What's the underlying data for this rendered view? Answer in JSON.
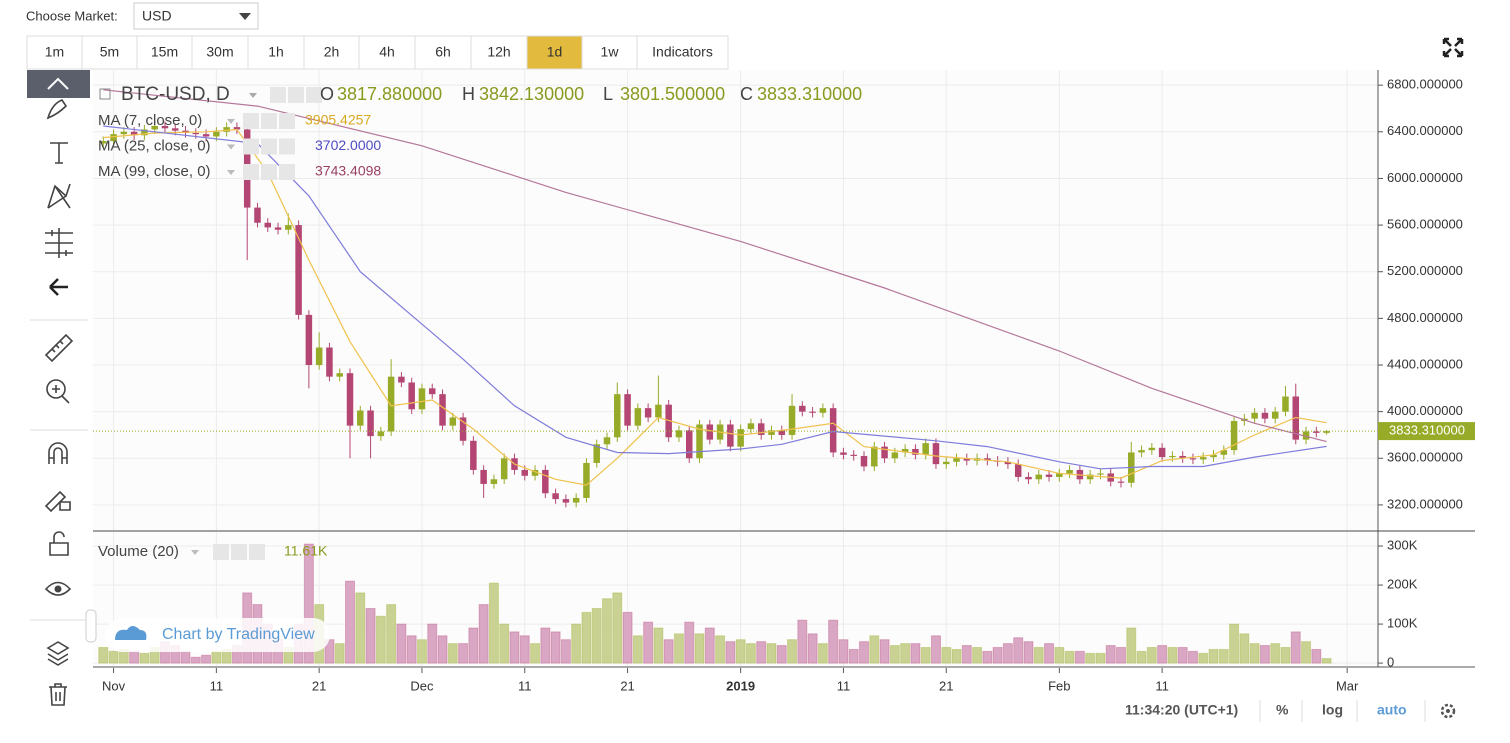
{
  "header": {
    "market_label": "Choose Market:",
    "market": "USD"
  },
  "intervals": [
    "1m",
    "5m",
    "15m",
    "30m",
    "1h",
    "2h",
    "4h",
    "6h",
    "12h",
    "1d",
    "1w",
    "Indicators"
  ],
  "active_interval": "1d",
  "footer": {
    "time": "11:34:20 (UTC+1)",
    "percent": "%",
    "log": "log",
    "auto": "auto"
  },
  "watermark": "Chart by TradingView",
  "chart_data": {
    "type": "candlestick",
    "symbol": "BTC-USD, D",
    "ohlc_legend": [
      {
        "key": "O",
        "label": "3817.880000"
      },
      {
        "key": "H",
        "label": "3842.130000"
      },
      {
        "key": "L",
        "label": "3801.500000"
      },
      {
        "key": "C",
        "label": "3833.310000"
      }
    ],
    "last_price_label": "3833.310000",
    "up_color": "#98ab28",
    "down_color": "#b44673",
    "volume_up_color": "#c9d292",
    "volume_down_color": "#d9a6c4",
    "x": [
      "2018-10-31",
      "2018-11-01",
      "2018-11-02",
      "2018-11-03",
      "2018-11-04",
      "2018-11-05",
      "2018-11-06",
      "2018-11-07",
      "2018-11-08",
      "2018-11-09",
      "2018-11-10",
      "2018-11-11",
      "2018-11-12",
      "2018-11-13",
      "2018-11-14",
      "2018-11-15",
      "2018-11-16",
      "2018-11-17",
      "2018-11-18",
      "2018-11-19",
      "2018-11-20",
      "2018-11-21",
      "2018-11-22",
      "2018-11-23",
      "2018-11-24",
      "2018-11-25",
      "2018-11-26",
      "2018-11-27",
      "2018-11-28",
      "2018-11-29",
      "2018-11-30",
      "2018-12-01",
      "2018-12-02",
      "2018-12-03",
      "2018-12-04",
      "2018-12-05",
      "2018-12-06",
      "2018-12-07",
      "2018-12-08",
      "2018-12-09",
      "2018-12-10",
      "2018-12-11",
      "2018-12-12",
      "2018-12-13",
      "2018-12-14",
      "2018-12-15",
      "2018-12-16",
      "2018-12-17",
      "2018-12-18",
      "2018-12-19",
      "2018-12-20",
      "2018-12-21",
      "2018-12-22",
      "2018-12-23",
      "2018-12-24",
      "2018-12-25",
      "2018-12-26",
      "2018-12-27",
      "2018-12-28",
      "2018-12-29",
      "2018-12-30",
      "2018-12-31",
      "2019-01-01",
      "2019-01-02",
      "2019-01-03",
      "2019-01-04",
      "2019-01-05",
      "2019-01-06",
      "2019-01-07",
      "2019-01-08",
      "2019-01-09",
      "2019-01-10",
      "2019-01-11",
      "2019-01-12",
      "2019-01-13",
      "2019-01-14",
      "2019-01-15",
      "2019-01-16",
      "2019-01-17",
      "2019-01-18",
      "2019-01-19",
      "2019-01-20",
      "2019-01-21",
      "2019-01-22",
      "2019-01-23",
      "2019-01-24",
      "2019-01-25",
      "2019-01-26",
      "2019-01-27",
      "2019-01-28",
      "2019-01-29",
      "2019-01-30",
      "2019-01-31",
      "2019-02-01",
      "2019-02-02",
      "2019-02-03",
      "2019-02-04",
      "2019-02-05",
      "2019-02-06",
      "2019-02-07",
      "2019-02-08",
      "2019-02-09",
      "2019-02-10",
      "2019-02-11",
      "2019-02-12",
      "2019-02-13",
      "2019-02-14",
      "2019-02-15",
      "2019-02-16",
      "2019-02-17",
      "2019-02-18",
      "2019-02-19",
      "2019-02-20",
      "2019-02-21",
      "2019-02-22",
      "2019-02-23",
      "2019-02-24",
      "2019-02-25",
      "2019-02-26",
      "2019-02-27"
    ],
    "open": [
      6300,
      6320,
      6380,
      6400,
      6370,
      6420,
      6450,
      6430,
      6410,
      6390,
      6380,
      6360,
      6400,
      6440,
      6420,
      5750,
      5620,
      5580,
      5560,
      5600,
      4830,
      4400,
      4550,
      4300,
      4330,
      3880,
      4010,
      3790,
      3830,
      4300,
      4250,
      4020,
      4200,
      4150,
      3880,
      3950,
      3750,
      3500,
      3380,
      3420,
      3600,
      3500,
      3450,
      3500,
      3300,
      3250,
      3220,
      3260,
      3560,
      3720,
      3780,
      4150,
      3880,
      4030,
      3950,
      4060,
      3780,
      3840,
      3600,
      3890,
      3760,
      3890,
      3700,
      3850,
      3900,
      3800,
      3840,
      3800,
      4050,
      4000,
      3990,
      4030,
      3650,
      3630,
      3620,
      3530,
      3700,
      3600,
      3650,
      3680,
      3630,
      3730,
      3550,
      3570,
      3600,
      3580,
      3600,
      3580,
      3570,
      3550,
      3440,
      3420,
      3460,
      3440,
      3470,
      3500,
      3420,
      3460,
      3470,
      3400,
      3390,
      3650,
      3670,
      3690,
      3610,
      3620,
      3600,
      3590,
      3610,
      3630,
      3670,
      3920,
      3940,
      3990,
      3940,
      4000,
      4130,
      3760,
      3830,
      3817.88
    ],
    "high": [
      6360,
      6420,
      6440,
      6440,
      6460,
      6490,
      6490,
      6470,
      6450,
      6430,
      6420,
      6440,
      6480,
      6480,
      6460,
      5790,
      5660,
      5620,
      5700,
      5640,
      4870,
      4680,
      4590,
      4370,
      4370,
      4050,
      4050,
      3870,
      4450,
      4340,
      4290,
      4240,
      4240,
      4190,
      3990,
      3990,
      3790,
      3540,
      3460,
      3640,
      3640,
      3540,
      3540,
      3540,
      3340,
      3290,
      3300,
      3600,
      3760,
      3820,
      4250,
      4190,
      4070,
      4070,
      4310,
      4100,
      3880,
      3880,
      3930,
      3930,
      3930,
      3930,
      3890,
      3940,
      3940,
      3880,
      3880,
      4150,
      4090,
      4040,
      4070,
      4070,
      3690,
      3670,
      3660,
      3740,
      3740,
      3690,
      3720,
      3720,
      3770,
      3770,
      3610,
      3640,
      3640,
      3640,
      3640,
      3620,
      3610,
      3590,
      3480,
      3500,
      3500,
      3510,
      3540,
      3540,
      3500,
      3510,
      3510,
      3440,
      3740,
      3710,
      3730,
      3730,
      3660,
      3660,
      3640,
      3650,
      3670,
      3710,
      3960,
      3980,
      4030,
      4030,
      4040,
      4220,
      4240,
      3870,
      3870,
      3842.13
    ],
    "low": [
      6260,
      6280,
      6340,
      6330,
      6330,
      6380,
      6390,
      6370,
      6350,
      6340,
      6320,
      6320,
      6360,
      6380,
      5300,
      5580,
      5540,
      5520,
      5520,
      4790,
      4200,
      4360,
      4260,
      4260,
      3600,
      3840,
      3600,
      3750,
      3790,
      4210,
      3980,
      3980,
      4110,
      3840,
      3840,
      3710,
      3460,
      3260,
      3340,
      3380,
      3460,
      3410,
      3410,
      3260,
      3210,
      3180,
      3180,
      3220,
      3520,
      3680,
      3740,
      3840,
      3840,
      3910,
      3910,
      3740,
      3740,
      3560,
      3560,
      3720,
      3720,
      3660,
      3660,
      3810,
      3760,
      3760,
      3760,
      3760,
      3960,
      3950,
      3950,
      3610,
      3590,
      3580,
      3490,
      3490,
      3560,
      3560,
      3610,
      3590,
      3590,
      3510,
      3510,
      3530,
      3540,
      3540,
      3540,
      3530,
      3510,
      3400,
      3380,
      3380,
      3400,
      3400,
      3430,
      3380,
      3380,
      3420,
      3360,
      3350,
      3350,
      3610,
      3630,
      3570,
      3570,
      3560,
      3550,
      3550,
      3570,
      3590,
      3630,
      3880,
      3900,
      3900,
      3900,
      3960,
      3720,
      3720,
      3780,
      3801.5
    ],
    "close": [
      6320,
      6380,
      6400,
      6370,
      6420,
      6450,
      6430,
      6410,
      6390,
      6380,
      6360,
      6400,
      6440,
      6420,
      5750,
      5620,
      5580,
      5560,
      5600,
      4830,
      4400,
      4550,
      4300,
      4330,
      3880,
      4010,
      3790,
      3830,
      4300,
      4250,
      4020,
      4200,
      4150,
      3880,
      3950,
      3750,
      3500,
      3380,
      3420,
      3600,
      3500,
      3450,
      3500,
      3300,
      3250,
      3220,
      3260,
      3560,
      3720,
      3780,
      4150,
      3880,
      4030,
      3950,
      4060,
      3780,
      3840,
      3600,
      3890,
      3760,
      3890,
      3700,
      3850,
      3900,
      3800,
      3840,
      3800,
      4050,
      4000,
      3990,
      4030,
      3650,
      3630,
      3620,
      3530,
      3700,
      3600,
      3650,
      3680,
      3630,
      3730,
      3550,
      3570,
      3600,
      3580,
      3600,
      3580,
      3570,
      3550,
      3440,
      3420,
      3460,
      3440,
      3470,
      3500,
      3420,
      3460,
      3470,
      3400,
      3390,
      3650,
      3670,
      3690,
      3610,
      3620,
      3600,
      3590,
      3610,
      3630,
      3670,
      3920,
      3940,
      3990,
      3940,
      4000,
      4130,
      3760,
      3830,
      3817.88,
      3833.31
    ],
    "volume": [
      40000,
      30000,
      35000,
      30000,
      25000,
      40000,
      55000,
      45000,
      30000,
      15000,
      20000,
      30000,
      35000,
      45000,
      180000,
      150000,
      100000,
      60000,
      40000,
      100000,
      305000,
      150000,
      60000,
      50000,
      210000,
      180000,
      140000,
      120000,
      150000,
      100000,
      70000,
      60000,
      100000,
      70000,
      50000,
      50000,
      90000,
      150000,
      205000,
      100000,
      80000,
      70000,
      50000,
      90000,
      80000,
      60000,
      100000,
      130000,
      140000,
      165000,
      180000,
      130000,
      70000,
      105000,
      90000,
      60000,
      75000,
      105000,
      75000,
      90000,
      70000,
      55000,
      60000,
      50000,
      55000,
      50000,
      45000,
      60000,
      110000,
      75000,
      50000,
      110000,
      60000,
      35000,
      55000,
      70000,
      60000,
      45000,
      50000,
      50000,
      40000,
      70000,
      40000,
      35000,
      45000,
      40000,
      30000,
      40000,
      50000,
      65000,
      55000,
      40000,
      50000,
      40000,
      30000,
      30000,
      25000,
      25000,
      45000,
      40000,
      90000,
      30000,
      40000,
      45000,
      40000,
      40000,
      30000,
      25000,
      35000,
      35000,
      100000,
      75000,
      50000,
      45000,
      50000,
      40000,
      80000,
      55000,
      35000,
      11610
    ],
    "volume_legend": {
      "name": "Volume (20)",
      "value_label": "11.61K"
    },
    "series": [
      {
        "name": "MA (7, close, 0)",
        "color": "#f0c24e",
        "legend_color": "#d9a91f",
        "legend_value": "3905.4257",
        "x": [
          "2018-10-31",
          "2018-11-05",
          "2018-11-10",
          "2018-11-13",
          "2018-11-16",
          "2018-11-20",
          "2018-11-24",
          "2018-11-28",
          "2018-12-02",
          "2018-12-06",
          "2018-12-10",
          "2018-12-14",
          "2018-12-17",
          "2018-12-20",
          "2018-12-24",
          "2018-12-28",
          "2019-01-01",
          "2019-01-06",
          "2019-01-10",
          "2019-01-13",
          "2019-01-20",
          "2019-01-27",
          "2019-02-01",
          "2019-02-07",
          "2019-02-11",
          "2019-02-16",
          "2019-02-20",
          "2019-02-24",
          "2019-02-27"
        ],
        "values": [
          6350,
          6390,
          6400,
          6420,
          6050,
          5300,
          4600,
          4050,
          4100,
          3850,
          3550,
          3420,
          3370,
          3600,
          3950,
          3850,
          3800,
          3850,
          3900,
          3700,
          3620,
          3570,
          3470,
          3430,
          3580,
          3630,
          3800,
          3950,
          3905.4257
        ]
      },
      {
        "name": "MA (25, close, 0)",
        "color": "#7f7cdb",
        "legend_color": "#4f4bc2",
        "legend_value": "3702.0000",
        "x": [
          "2018-10-31",
          "2018-11-15",
          "2018-11-20",
          "2018-11-25",
          "2018-12-01",
          "2018-12-05",
          "2018-12-10",
          "2018-12-15",
          "2018-12-20",
          "2018-12-25",
          "2019-01-01",
          "2019-01-05",
          "2019-01-10",
          "2019-01-15",
          "2019-01-20",
          "2019-01-25",
          "2019-02-01",
          "2019-02-05",
          "2019-02-10",
          "2019-02-15",
          "2019-02-20",
          "2019-02-27"
        ],
        "values": [
          6450,
          6300,
          5850,
          5200,
          4750,
          4450,
          4050,
          3780,
          3650,
          3640,
          3680,
          3720,
          3830,
          3790,
          3750,
          3700,
          3570,
          3510,
          3530,
          3530,
          3610,
          3702
        ]
      },
      {
        "name": "MA (99, close, 0)",
        "color": "#b5769a",
        "legend_color": "#9a3f63",
        "legend_value": "3743.4098",
        "x": [
          "2018-10-31",
          "2018-11-15",
          "2018-12-01",
          "2018-12-15",
          "2019-01-01",
          "2019-01-15",
          "2019-02-01",
          "2019-02-10",
          "2019-02-20",
          "2019-02-27"
        ],
        "values": [
          6760,
          6620,
          6280,
          5880,
          5460,
          5060,
          4520,
          4200,
          3900,
          3743.4098
        ]
      }
    ],
    "xlim": [
      "2018-10-30",
      "2019-03-04"
    ],
    "xticks": [
      {
        "value": "2018-11-01",
        "label": "Nov"
      },
      {
        "value": "2018-11-11",
        "label": "11"
      },
      {
        "value": "2018-11-21",
        "label": "21"
      },
      {
        "value": "2018-12-01",
        "label": "Dec"
      },
      {
        "value": "2018-12-11",
        "label": "11"
      },
      {
        "value": "2018-12-21",
        "label": "21"
      },
      {
        "value": "2019-01-01",
        "label": "2019"
      },
      {
        "value": "2019-01-11",
        "label": "11"
      },
      {
        "value": "2019-01-21",
        "label": "21"
      },
      {
        "value": "2019-02-01",
        "label": "Feb"
      },
      {
        "value": "2019-02-11",
        "label": "11"
      },
      {
        "value": "2019-03-01",
        "label": "Mar"
      }
    ],
    "ylim": [
      2985,
      6930
    ],
    "yticks": [
      {
        "value": 3200,
        "label": "3200.000000"
      },
      {
        "value": 3600,
        "label": "3600.000000"
      },
      {
        "value": 4000,
        "label": "4000.000000"
      },
      {
        "value": 4400,
        "label": "4400.000000"
      },
      {
        "value": 4800,
        "label": "4800.000000"
      },
      {
        "value": 5200,
        "label": "5200.000000"
      },
      {
        "value": 5600,
        "label": "5600.000000"
      },
      {
        "value": 6000,
        "label": "6000.000000"
      },
      {
        "value": 6400,
        "label": "6400.000000"
      },
      {
        "value": 6800,
        "label": "6800.000000"
      }
    ],
    "volume_ylim": [
      -10000,
      336000
    ],
    "volume_yticks": [
      0,
      {
        "value": 100000,
        "label": "100K"
      },
      {
        "value": 200000,
        "label": "200K"
      },
      {
        "value": 300000,
        "label": "300K"
      }
    ],
    "grid": true
  }
}
